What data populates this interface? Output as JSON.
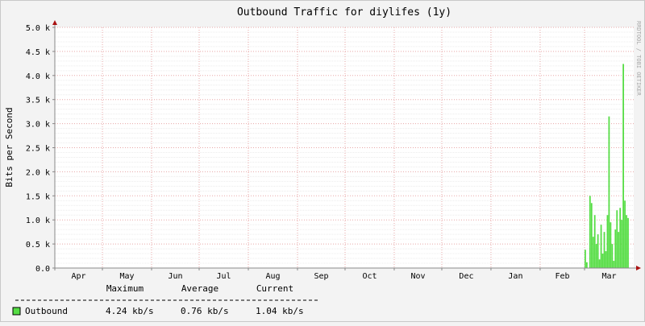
{
  "chart_data": {
    "type": "area",
    "title": "Outbound Traffic for diylifes (1y)",
    "ylabel": "Bits per Second",
    "watermark": "RRDTOOL / TOBI OETIKER",
    "ylim": [
      0,
      5000
    ],
    "yticks": [
      {
        "value": 0,
        "label": "0.0"
      },
      {
        "value": 500,
        "label": "0.5 k"
      },
      {
        "value": 1000,
        "label": "1.0 k"
      },
      {
        "value": 1500,
        "label": "1.5 k"
      },
      {
        "value": 2000,
        "label": "2.0 k"
      },
      {
        "value": 2500,
        "label": "2.5 k"
      },
      {
        "value": 3000,
        "label": "3.0 k"
      },
      {
        "value": 3500,
        "label": "3.5 k"
      },
      {
        "value": 4000,
        "label": "4.0 k"
      },
      {
        "value": 4500,
        "label": "4.5 k"
      },
      {
        "value": 5000,
        "label": "5.0 k"
      }
    ],
    "months": [
      "Apr",
      "May",
      "Jun",
      "Jul",
      "Aug",
      "Sep",
      "Oct",
      "Nov",
      "Dec",
      "Jan",
      "Feb",
      "Mar"
    ],
    "grid": true,
    "colors": {
      "area": "#66dd55",
      "grid": "#e8a8a8",
      "axis": "#888888",
      "arrow": "#aa1111"
    },
    "series": [
      {
        "name": "Outbound",
        "color": "#55dd44",
        "points": [
          [
            0,
            0
          ],
          [
            333,
            0
          ],
          [
            334,
            380
          ],
          [
            335,
            120
          ],
          [
            336,
            0
          ],
          [
            337,
            1500
          ],
          [
            338,
            1350
          ],
          [
            339,
            650
          ],
          [
            340,
            1100
          ],
          [
            341,
            500
          ],
          [
            342,
            700
          ],
          [
            343,
            180
          ],
          [
            344,
            900
          ],
          [
            345,
            300
          ],
          [
            346,
            750
          ],
          [
            347,
            350
          ],
          [
            348,
            1100
          ],
          [
            349,
            3150
          ],
          [
            350,
            950
          ],
          [
            351,
            500
          ],
          [
            352,
            150
          ],
          [
            353,
            800
          ],
          [
            354,
            1200
          ],
          [
            355,
            750
          ],
          [
            356,
            1250
          ],
          [
            357,
            1000
          ],
          [
            358,
            4240
          ],
          [
            359,
            1400
          ],
          [
            360,
            1100
          ],
          [
            361,
            1040
          ]
        ]
      }
    ]
  },
  "legend": {
    "headers": [
      "Maximum",
      "Average",
      "Current"
    ],
    "rows": [
      {
        "name": "Outbound",
        "color": "#55dd44",
        "maximum": "4.24 kb/s",
        "average": "0.76 kb/s",
        "current": "1.04 kb/s"
      }
    ]
  }
}
